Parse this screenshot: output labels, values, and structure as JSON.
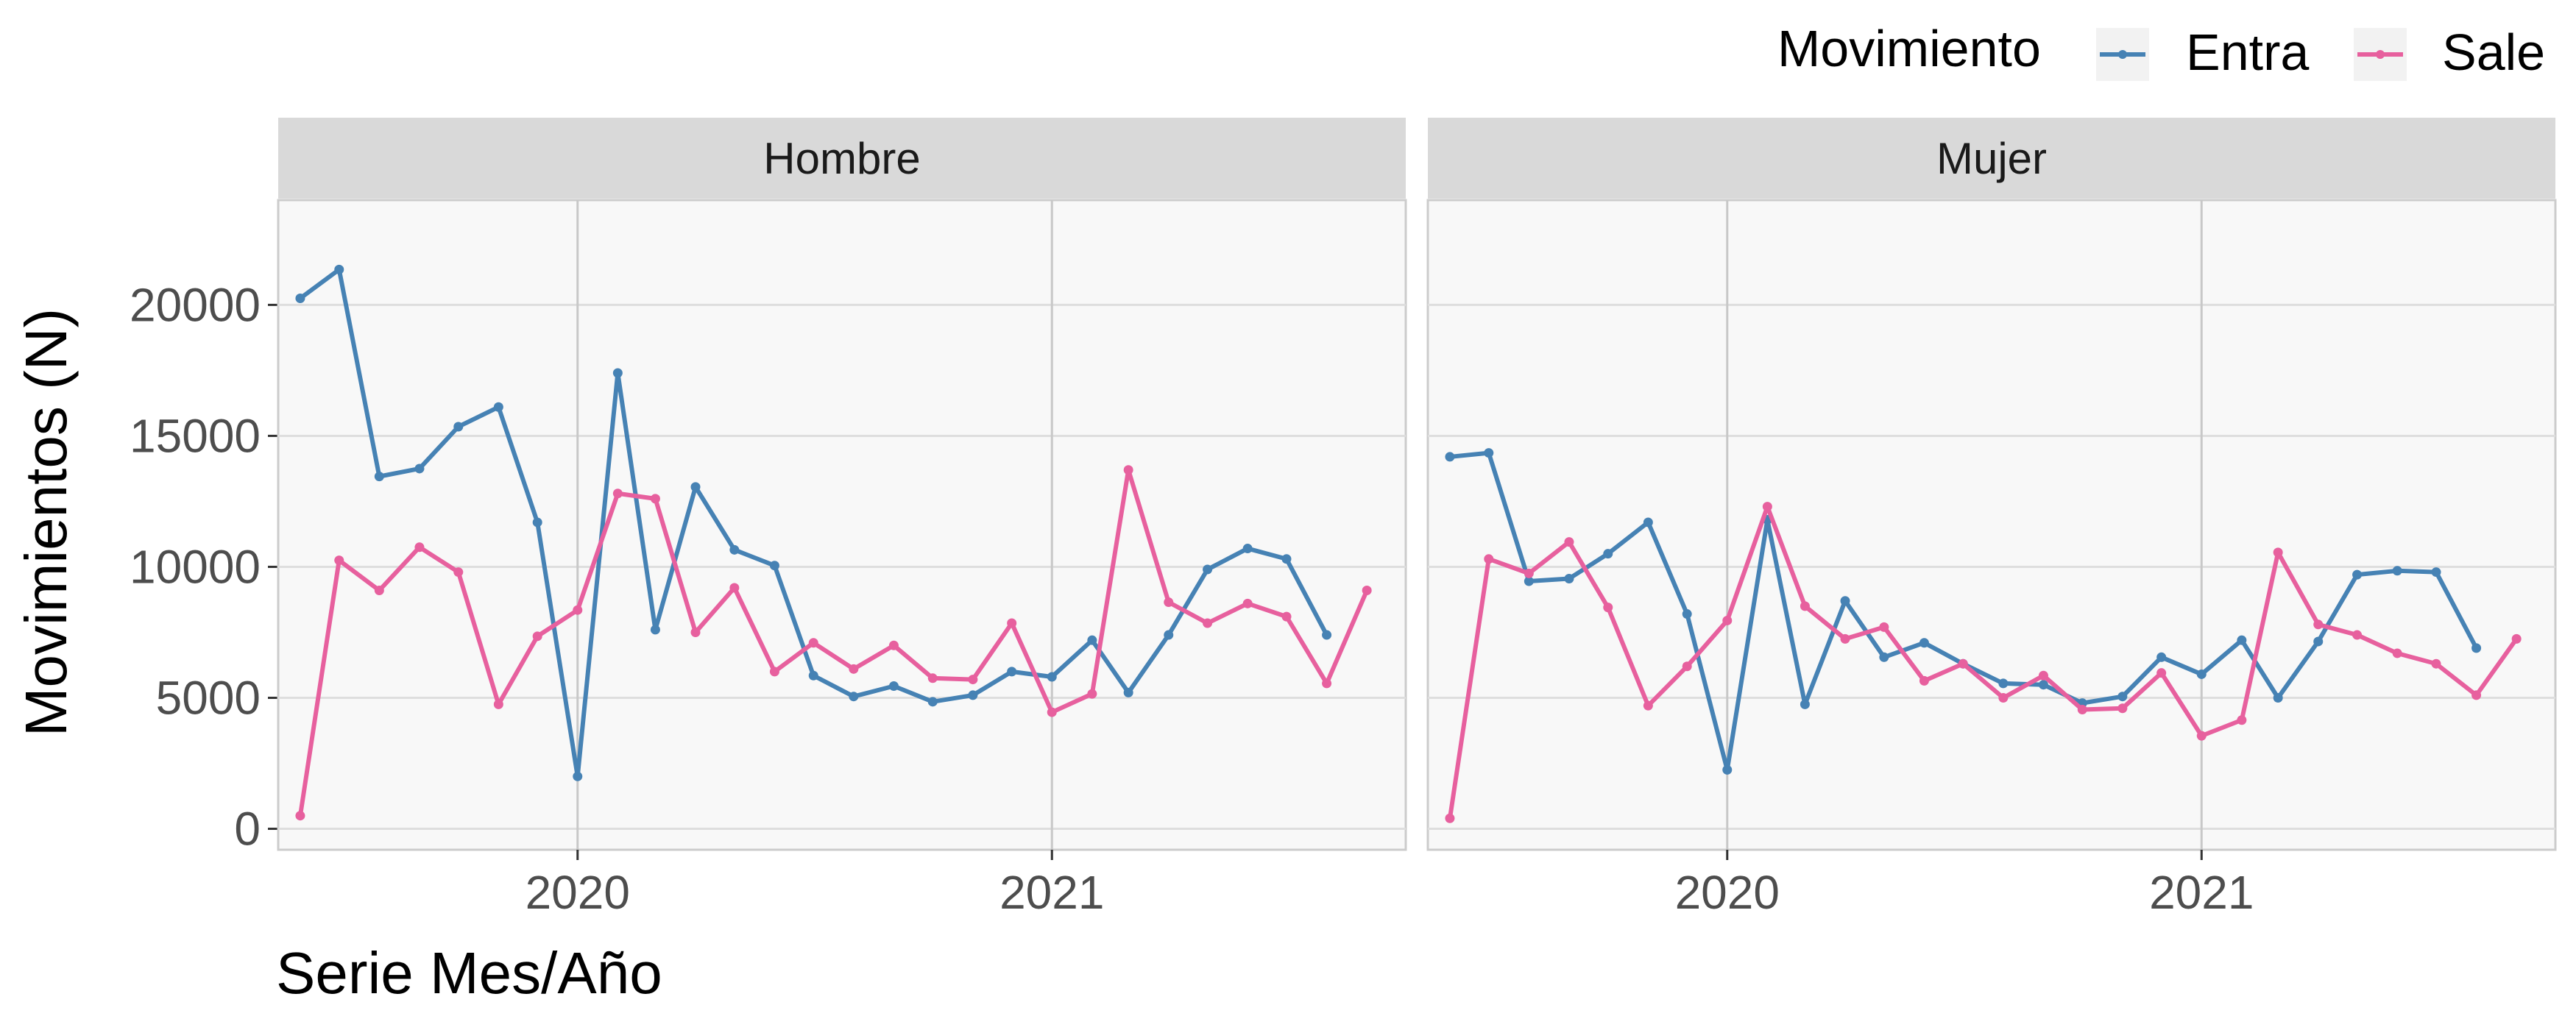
{
  "chart_data": {
    "type": "line",
    "ylabel": "Movimientos (N)",
    "xlabel": "Serie Mes/Año",
    "ylim": [
      -800,
      24000
    ],
    "xlim": [
      "2019-05-15",
      "2021-10-01"
    ],
    "y_ticks": [
      0,
      5000,
      10000,
      15000,
      20000
    ],
    "y_tick_labels": [
      "0",
      "5000",
      "10000",
      "15000",
      "20000"
    ],
    "x_ticks": [
      "2020-01-01",
      "2021-01-01"
    ],
    "x_tick_labels": [
      "2020",
      "2021"
    ],
    "grid": true,
    "legend": {
      "title": "Movimiento",
      "position": "top-right",
      "entries": [
        "Entra",
        "Sale"
      ]
    },
    "colors": {
      "Entra": "#4682B4",
      "Sale": "#E7609E"
    },
    "panels": [
      {
        "name": "Hombre",
        "series": [
          {
            "name": "Entra",
            "x": [
              "2019-06-01",
              "2019-07-01",
              "2019-08-01",
              "2019-09-01",
              "2019-10-01",
              "2019-11-01",
              "2019-12-01",
              "2020-01-01",
              "2020-02-01",
              "2020-03-01",
              "2020-04-01",
              "2020-05-01",
              "2020-06-01",
              "2020-07-01",
              "2020-08-01",
              "2020-09-01",
              "2020-10-01",
              "2020-11-01",
              "2020-12-01",
              "2021-01-01",
              "2021-02-01",
              "2021-03-01",
              "2021-04-01",
              "2021-05-01",
              "2021-06-01",
              "2021-07-01",
              "2021-08-01"
            ],
            "values": [
              20250,
              21350,
              13450,
              13750,
              15350,
              16100,
              11700,
              2000,
              17400,
              7600,
              13050,
              10650,
              10050,
              5850,
              5050,
              5450,
              4850,
              5100,
              6000,
              5800,
              7200,
              5200,
              7400,
              9900,
              10700,
              10300,
              7400
            ]
          },
          {
            "name": "Sale",
            "x": [
              "2019-06-01",
              "2019-07-01",
              "2019-08-01",
              "2019-09-01",
              "2019-10-01",
              "2019-11-01",
              "2019-12-01",
              "2020-01-01",
              "2020-02-01",
              "2020-03-01",
              "2020-04-01",
              "2020-05-01",
              "2020-06-01",
              "2020-07-01",
              "2020-08-01",
              "2020-09-01",
              "2020-10-01",
              "2020-11-01",
              "2020-12-01",
              "2021-01-01",
              "2021-02-01",
              "2021-03-01",
              "2021-04-01",
              "2021-05-01",
              "2021-06-01",
              "2021-07-01",
              "2021-08-01",
              "2021-09-01"
            ],
            "values": [
              500,
              10250,
              9100,
              10750,
              9800,
              4750,
              7350,
              8350,
              12800,
              12600,
              7500,
              9200,
              6000,
              7100,
              6100,
              7000,
              5750,
              5700,
              7850,
              4450,
              5150,
              13700,
              8650,
              7850,
              8600,
              8100,
              5550,
              9100
            ]
          }
        ]
      },
      {
        "name": "Mujer",
        "series": [
          {
            "name": "Entra",
            "x": [
              "2019-06-01",
              "2019-07-01",
              "2019-08-01",
              "2019-09-01",
              "2019-10-01",
              "2019-11-01",
              "2019-12-01",
              "2020-01-01",
              "2020-02-01",
              "2020-03-01",
              "2020-04-01",
              "2020-05-01",
              "2020-06-01",
              "2020-07-01",
              "2020-08-01",
              "2020-09-01",
              "2020-10-01",
              "2020-11-01",
              "2020-12-01",
              "2021-01-01",
              "2021-02-01",
              "2021-03-01",
              "2021-04-01",
              "2021-05-01",
              "2021-06-01",
              "2021-07-01",
              "2021-08-01"
            ],
            "values": [
              14200,
              14350,
              9450,
              9550,
              10500,
              11700,
              8200,
              2250,
              11800,
              4750,
              8700,
              6550,
              7100,
              6300,
              5550,
              5500,
              4800,
              5050,
              6550,
              5900,
              7200,
              5000,
              7150,
              9700,
              9850,
              9800,
              6900
            ]
          },
          {
            "name": "Sale",
            "x": [
              "2019-06-01",
              "2019-07-01",
              "2019-08-01",
              "2019-09-01",
              "2019-10-01",
              "2019-11-01",
              "2019-12-01",
              "2020-01-01",
              "2020-02-01",
              "2020-03-01",
              "2020-04-01",
              "2020-05-01",
              "2020-06-01",
              "2020-07-01",
              "2020-08-01",
              "2020-09-01",
              "2020-10-01",
              "2020-11-01",
              "2020-12-01",
              "2021-01-01",
              "2021-02-01",
              "2021-03-01",
              "2021-04-01",
              "2021-05-01",
              "2021-06-01",
              "2021-07-01",
              "2021-08-01",
              "2021-09-01"
            ],
            "values": [
              400,
              10300,
              9750,
              10950,
              8450,
              4700,
              6200,
              7950,
              12300,
              8500,
              7250,
              7700,
              5650,
              6300,
              5000,
              5850,
              4550,
              4600,
              5950,
              3550,
              4150,
              10550,
              7800,
              7400,
              6700,
              6300,
              5100,
              7250
            ]
          }
        ]
      }
    ]
  }
}
